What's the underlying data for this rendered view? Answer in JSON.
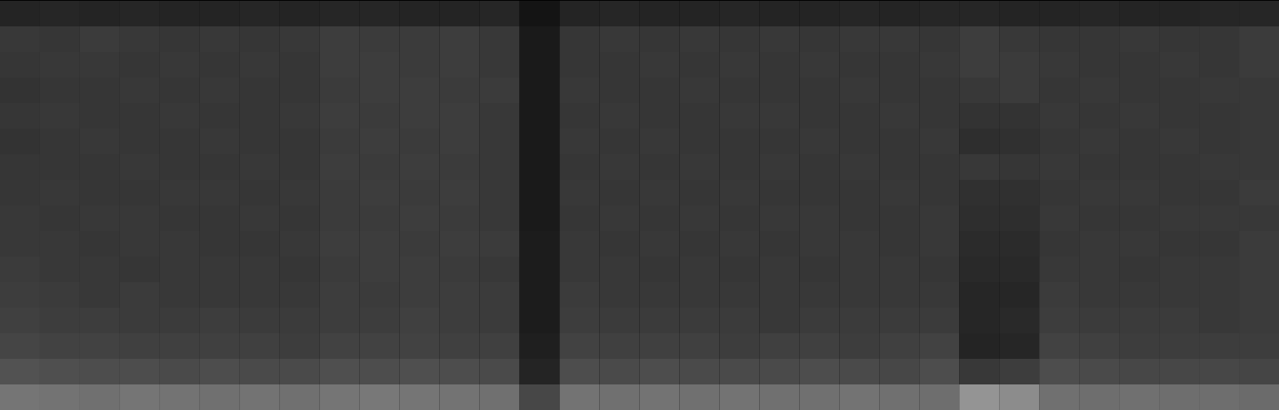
{
  "chart_data": {
    "type": "heatmap",
    "tick_labels": false,
    "zlim": [
      0,
      100
    ],
    "cells": [
      [
        14,
        15,
        14,
        15,
        14,
        14,
        15,
        14,
        15,
        15,
        14,
        14,
        15,
        8,
        14,
        15,
        14,
        14,
        15,
        14,
        14,
        15,
        14,
        15,
        15,
        14,
        14,
        15,
        14,
        14,
        15,
        15
      ],
      [
        22,
        21,
        23,
        22,
        21,
        22,
        21,
        22,
        24,
        23,
        23,
        24,
        22,
        10,
        21,
        22,
        21,
        22,
        21,
        22,
        21,
        22,
        22,
        21,
        24,
        22,
        21,
        21,
        22,
        21,
        21,
        23
      ],
      [
        21,
        22,
        22,
        21,
        22,
        21,
        22,
        21,
        24,
        24,
        23,
        24,
        22,
        10,
        21,
        21,
        22,
        21,
        22,
        21,
        22,
        21,
        21,
        22,
        24,
        23,
        22,
        21,
        21,
        22,
        21,
        23
      ],
      [
        20,
        21,
        21,
        22,
        21,
        22,
        21,
        21,
        23,
        24,
        24,
        23,
        23,
        10,
        22,
        21,
        21,
        22,
        21,
        21,
        21,
        22,
        21,
        21,
        22,
        23,
        21,
        22,
        21,
        21,
        22,
        22
      ],
      [
        21,
        22,
        21,
        21,
        22,
        21,
        21,
        22,
        24,
        23,
        24,
        24,
        22,
        10,
        21,
        22,
        21,
        21,
        22,
        22,
        21,
        21,
        22,
        21,
        20,
        20,
        22,
        21,
        22,
        21,
        21,
        22
      ],
      [
        20,
        21,
        22,
        21,
        21,
        22,
        21,
        21,
        23,
        24,
        23,
        24,
        22,
        10,
        22,
        21,
        22,
        21,
        21,
        21,
        22,
        21,
        21,
        22,
        18,
        19,
        21,
        22,
        21,
        22,
        21,
        22
      ],
      [
        21,
        21,
        21,
        22,
        21,
        21,
        22,
        21,
        24,
        23,
        24,
        23,
        22,
        10,
        21,
        22,
        21,
        22,
        21,
        22,
        21,
        22,
        21,
        21,
        22,
        21,
        22,
        21,
        21,
        21,
        22,
        22
      ],
      [
        21,
        22,
        21,
        21,
        22,
        22,
        21,
        22,
        23,
        24,
        23,
        24,
        22,
        10,
        22,
        21,
        22,
        21,
        22,
        21,
        21,
        21,
        22,
        21,
        19,
        19,
        21,
        22,
        22,
        21,
        21,
        23
      ],
      [
        22,
        21,
        22,
        22,
        21,
        21,
        22,
        21,
        23,
        23,
        24,
        23,
        22,
        10,
        21,
        22,
        21,
        22,
        21,
        22,
        22,
        21,
        21,
        22,
        18,
        18,
        22,
        21,
        21,
        22,
        22,
        22
      ],
      [
        22,
        22,
        21,
        22,
        22,
        21,
        21,
        22,
        24,
        24,
        23,
        24,
        23,
        11,
        22,
        21,
        22,
        21,
        22,
        21,
        22,
        22,
        21,
        22,
        17,
        17,
        21,
        22,
        22,
        21,
        21,
        23
      ],
      [
        23,
        22,
        22,
        21,
        22,
        22,
        22,
        21,
        23,
        24,
        24,
        23,
        22,
        11,
        22,
        22,
        21,
        22,
        21,
        22,
        21,
        22,
        22,
        21,
        16,
        16,
        22,
        22,
        21,
        22,
        22,
        23
      ],
      [
        24,
        23,
        22,
        23,
        22,
        22,
        22,
        22,
        24,
        23,
        24,
        24,
        23,
        11,
        23,
        22,
        22,
        22,
        22,
        22,
        22,
        22,
        22,
        22,
        15,
        15,
        23,
        22,
        22,
        22,
        22,
        23
      ],
      [
        25,
        24,
        24,
        23,
        23,
        24,
        23,
        23,
        24,
        24,
        25,
        24,
        23,
        11,
        24,
        23,
        23,
        23,
        23,
        22,
        23,
        23,
        23,
        23,
        15,
        16,
        24,
        23,
        23,
        23,
        22,
        23
      ],
      [
        27,
        26,
        26,
        25,
        25,
        25,
        25,
        24,
        26,
        26,
        26,
        25,
        25,
        12,
        26,
        25,
        25,
        25,
        24,
        25,
        25,
        24,
        25,
        26,
        14,
        15,
        26,
        25,
        24,
        24,
        24,
        24
      ],
      [
        32,
        31,
        30,
        30,
        29,
        30,
        29,
        29,
        31,
        30,
        31,
        30,
        29,
        14,
        30,
        29,
        30,
        29,
        29,
        29,
        30,
        29,
        28,
        30,
        22,
        24,
        30,
        29,
        28,
        28,
        28,
        27
      ],
      [
        46,
        45,
        44,
        46,
        45,
        44,
        45,
        44,
        46,
        47,
        46,
        45,
        44,
        28,
        45,
        44,
        45,
        44,
        45,
        44,
        44,
        45,
        44,
        43,
        58,
        55,
        44,
        43,
        44,
        43,
        43,
        42
      ]
    ]
  }
}
